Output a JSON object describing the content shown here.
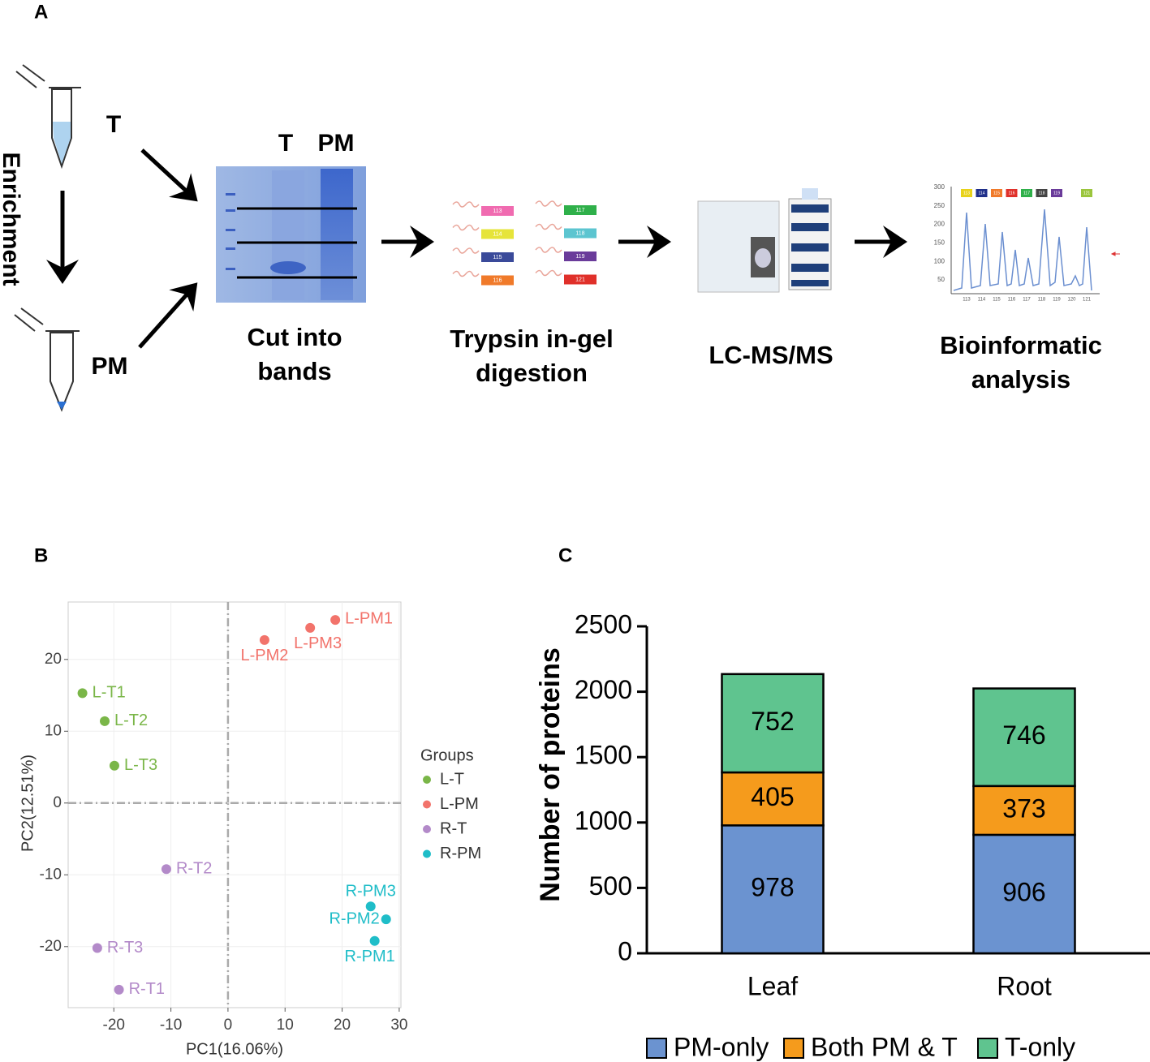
{
  "panel_labels": [
    "A",
    "B",
    "C"
  ],
  "workflow": {
    "enrichment": "Enrichment",
    "tube_labels": [
      "T",
      "PM"
    ],
    "gel_lanes": [
      "T",
      "PM"
    ],
    "steps": [
      [
        "Cut into",
        "bands"
      ],
      [
        "Trypsin in-gel",
        "digestion"
      ],
      [
        "LC-MS/MS"
      ],
      [
        "Bioinformatic",
        "analysis"
      ]
    ],
    "tags": [
      "113",
      "114",
      "115",
      "116",
      "117",
      "118",
      "119",
      "121"
    ],
    "chromatogram": {
      "yticks": [
        "300",
        "250",
        "200",
        "150",
        "100",
        "50"
      ],
      "peaks": [
        "113",
        "114",
        "115",
        "116",
        "117",
        "118",
        "119",
        "120",
        "121"
      ]
    }
  },
  "chart_data": [
    {
      "type": "scatter",
      "x_label": "PC1(16.06%)",
      "y_label": "PC2(12.51%)",
      "legend_title": "Groups",
      "xlim": [
        -28,
        30.3
      ],
      "ylim": [
        -28.5,
        28
      ],
      "xticks": [
        -20,
        -10,
        0,
        10,
        20,
        30
      ],
      "yticks": [
        -20,
        -10,
        0,
        10,
        20
      ],
      "grid": true,
      "legend": "right",
      "series": [
        {
          "name": "L-T",
          "color": "#7ab648",
          "labels": [
            "L-T1",
            "L-T2",
            "L-T3"
          ],
          "x": [
            -25.5,
            -21.6,
            -19.9
          ],
          "values": [
            15.3,
            11.4,
            5.2
          ]
        },
        {
          "name": "L-PM",
          "color": "#f2736b",
          "labels": [
            "L-PM1",
            "L-PM3",
            "L-PM2"
          ],
          "x": [
            18.8,
            14.4,
            6.4
          ],
          "values": [
            25.5,
            24.4,
            22.7
          ]
        },
        {
          "name": "R-T",
          "color": "#b38ac9",
          "labels": [
            "R-T2",
            "R-T3",
            "R-T1"
          ],
          "x": [
            -10.8,
            -22.9,
            -19.1
          ],
          "values": [
            -9.2,
            -20.2,
            -26.0
          ]
        },
        {
          "name": "R-PM",
          "color": "#1fbdc8",
          "labels": [
            "R-PM3",
            "R-PM2",
            "R-PM1"
          ],
          "x": [
            25.0,
            27.7,
            25.7
          ],
          "values": [
            -14.4,
            -16.2,
            -19.2
          ]
        }
      ]
    },
    {
      "type": "stacked_bar",
      "y_label": "Number of proteins",
      "categories": [
        "Leaf",
        "Root"
      ],
      "ylim": [
        0,
        2500
      ],
      "yticks": [
        0,
        500,
        1000,
        1500,
        2000,
        2500
      ],
      "legend": "bottom",
      "series": [
        {
          "name": "PM-only",
          "color": "#6b93d0",
          "values": [
            978,
            906
          ]
        },
        {
          "name": "Both PM & T",
          "color": "#f59b1c",
          "values": [
            405,
            373
          ]
        },
        {
          "name": "T-only",
          "color": "#5fc48f",
          "values": [
            752,
            746
          ]
        }
      ]
    }
  ]
}
